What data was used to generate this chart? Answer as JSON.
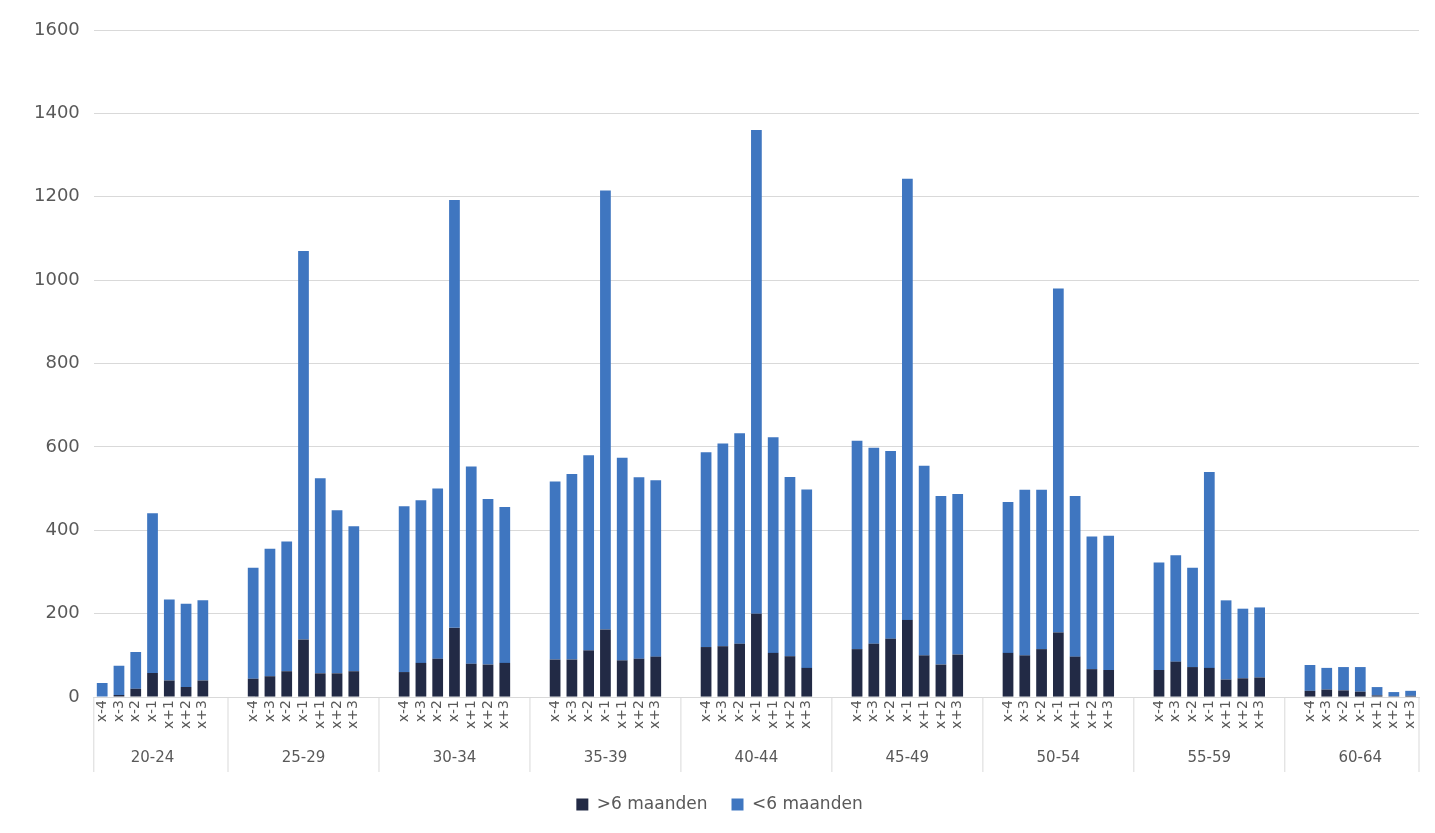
{
  "chart_data": {
    "type": "bar",
    "stacked": true,
    "categories": [
      "x-4",
      "x-3",
      "x-2",
      "x-1",
      "x+1",
      "x+2",
      "x+3",
      null,
      null,
      "x-4",
      "x-3",
      "x-2",
      "x-1",
      "x+1",
      "x+2",
      "x+3",
      null,
      null,
      "x-4",
      "x-3",
      "x-2",
      "x-1",
      "x+1",
      "x+2",
      "x+3",
      null,
      null,
      "x-4",
      "x-3",
      "x-2",
      "x-1",
      "x+1",
      "x+2",
      "x+3",
      null,
      null,
      "x-4",
      "x-3",
      "x-2",
      "x-1",
      "x+1",
      "x+2",
      "x+3",
      null,
      null,
      "x-4",
      "x-3",
      "x-2",
      "x-1",
      "x+1",
      "x+2",
      "x+3",
      null,
      null,
      "x-4",
      "x-3",
      "x-2",
      "x-1",
      "x+1",
      "x+2",
      "x+3",
      null,
      null,
      "x-4",
      "x-3",
      "x-2",
      "x-1",
      "x+1",
      "x+2",
      "x+3",
      null,
      null,
      "x-4",
      "x-3",
      "x-2",
      "x-1",
      "x+1",
      "x+2",
      "x+3"
    ],
    "series": [
      {
        "name": ">6 maanden",
        "color": "#222a45",
        "values": [
          null,
          5,
          20,
          58,
          40,
          24,
          40,
          null,
          null,
          44,
          50,
          62,
          138,
          57,
          57,
          62,
          null,
          null,
          60,
          82,
          92,
          166,
          80,
          78,
          82,
          null,
          null,
          90,
          90,
          112,
          162,
          88,
          92,
          97,
          null,
          null,
          120,
          122,
          128,
          200,
          106,
          98,
          70,
          null,
          null,
          115,
          128,
          140,
          185,
          100,
          78,
          102,
          null,
          null,
          106,
          100,
          115,
          155,
          97,
          67,
          65,
          null,
          null,
          65,
          85,
          72,
          70,
          42,
          45,
          47,
          null,
          null,
          15,
          18,
          16,
          13,
          4,
          2,
          3
        ]
      },
      {
        "name": "<6 maanden",
        "color": "#3f76c0",
        "values": [
          34,
          70,
          88,
          383,
          194,
          200,
          192,
          null,
          null,
          266,
          306,
          311,
          932,
          468,
          391,
          348,
          null,
          null,
          398,
          390,
          408,
          1026,
          473,
          397,
          374,
          null,
          null,
          427,
          445,
          468,
          1053,
          486,
          435,
          423,
          null,
          null,
          467,
          486,
          505,
          1160,
          517,
          430,
          428,
          null,
          null,
          500,
          470,
          450,
          1058,
          455,
          404,
          385,
          null,
          null,
          362,
          397,
          382,
          825,
          385,
          318,
          322,
          null,
          null,
          258,
          255,
          238,
          470,
          190,
          167,
          168,
          null,
          null,
          62,
          52,
          56,
          59,
          20,
          10,
          12
        ]
      }
    ],
    "annotations": [
      "20-24",
      "25-29",
      "30-34",
      "35-39",
      "40-44",
      "45-49",
      "50-54",
      "55-59",
      "60-64"
    ],
    "ylim": [
      0,
      1600
    ],
    "yticks": [
      0,
      200,
      400,
      600,
      800,
      1000,
      1200,
      1400,
      1600
    ],
    "grid": "y",
    "legend": "bottom"
  }
}
